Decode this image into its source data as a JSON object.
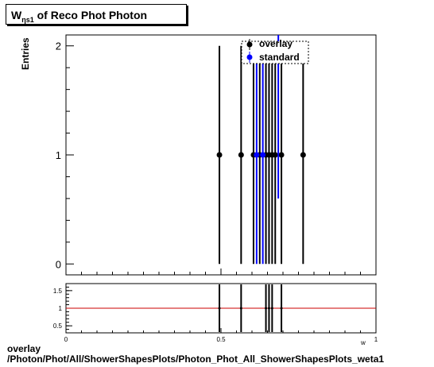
{
  "title": {
    "main": "W",
    "sub": "ηs1",
    "rest": " of Reco Phot Photon"
  },
  "footer": {
    "line1": "overlay",
    "line2": "/Photon/Phot/All/ShowerShapesPlots/Photon_Phot_All_ShowerShapesPlots_weta1"
  },
  "colors": {
    "overlay": "#000000",
    "standard": "#0000ff",
    "ratio_line": "#cc0000"
  },
  "chart_data": [
    {
      "type": "scatter",
      "ylabel": "Entries",
      "xlabel": "w",
      "xlim": [
        0,
        1
      ],
      "ylim": [
        -0.1,
        2.1
      ],
      "yticks": [
        0,
        1,
        2
      ],
      "legend": {
        "position": "top-right",
        "entries": [
          "overlay",
          "standard"
        ]
      },
      "series": [
        {
          "name": "overlay",
          "x": [
            0.495,
            0.565,
            0.605,
            0.625,
            0.645,
            0.655,
            0.665,
            0.675,
            0.695,
            0.765
          ],
          "y": [
            1,
            1,
            1,
            1,
            1,
            1,
            1,
            1,
            1,
            1
          ],
          "yerr": [
            1,
            1,
            1,
            1,
            1,
            1,
            1,
            1,
            1,
            1
          ]
        },
        {
          "name": "standard",
          "x": [
            0.615,
            0.635,
            0.685
          ],
          "y": [
            1,
            1,
            2
          ],
          "yerr": [
            1,
            1,
            1.4
          ]
        }
      ]
    },
    {
      "type": "line",
      "xlim": [
        0,
        1
      ],
      "ylim": [
        0.3,
        1.7
      ],
      "xticks": [
        "0",
        "0.5",
        "1"
      ],
      "yticks": [
        "0.5",
        "1",
        "1.5"
      ],
      "reference_y": 1,
      "ratio_points": [
        {
          "x": 0.495,
          "y": 1
        },
        {
          "x": 0.565,
          "y": 1
        },
        {
          "x": 0.645,
          "y": 1
        },
        {
          "x": 0.655,
          "y": 1
        },
        {
          "x": 0.665,
          "y": 1
        },
        {
          "x": 0.695,
          "y": 1
        }
      ]
    }
  ]
}
